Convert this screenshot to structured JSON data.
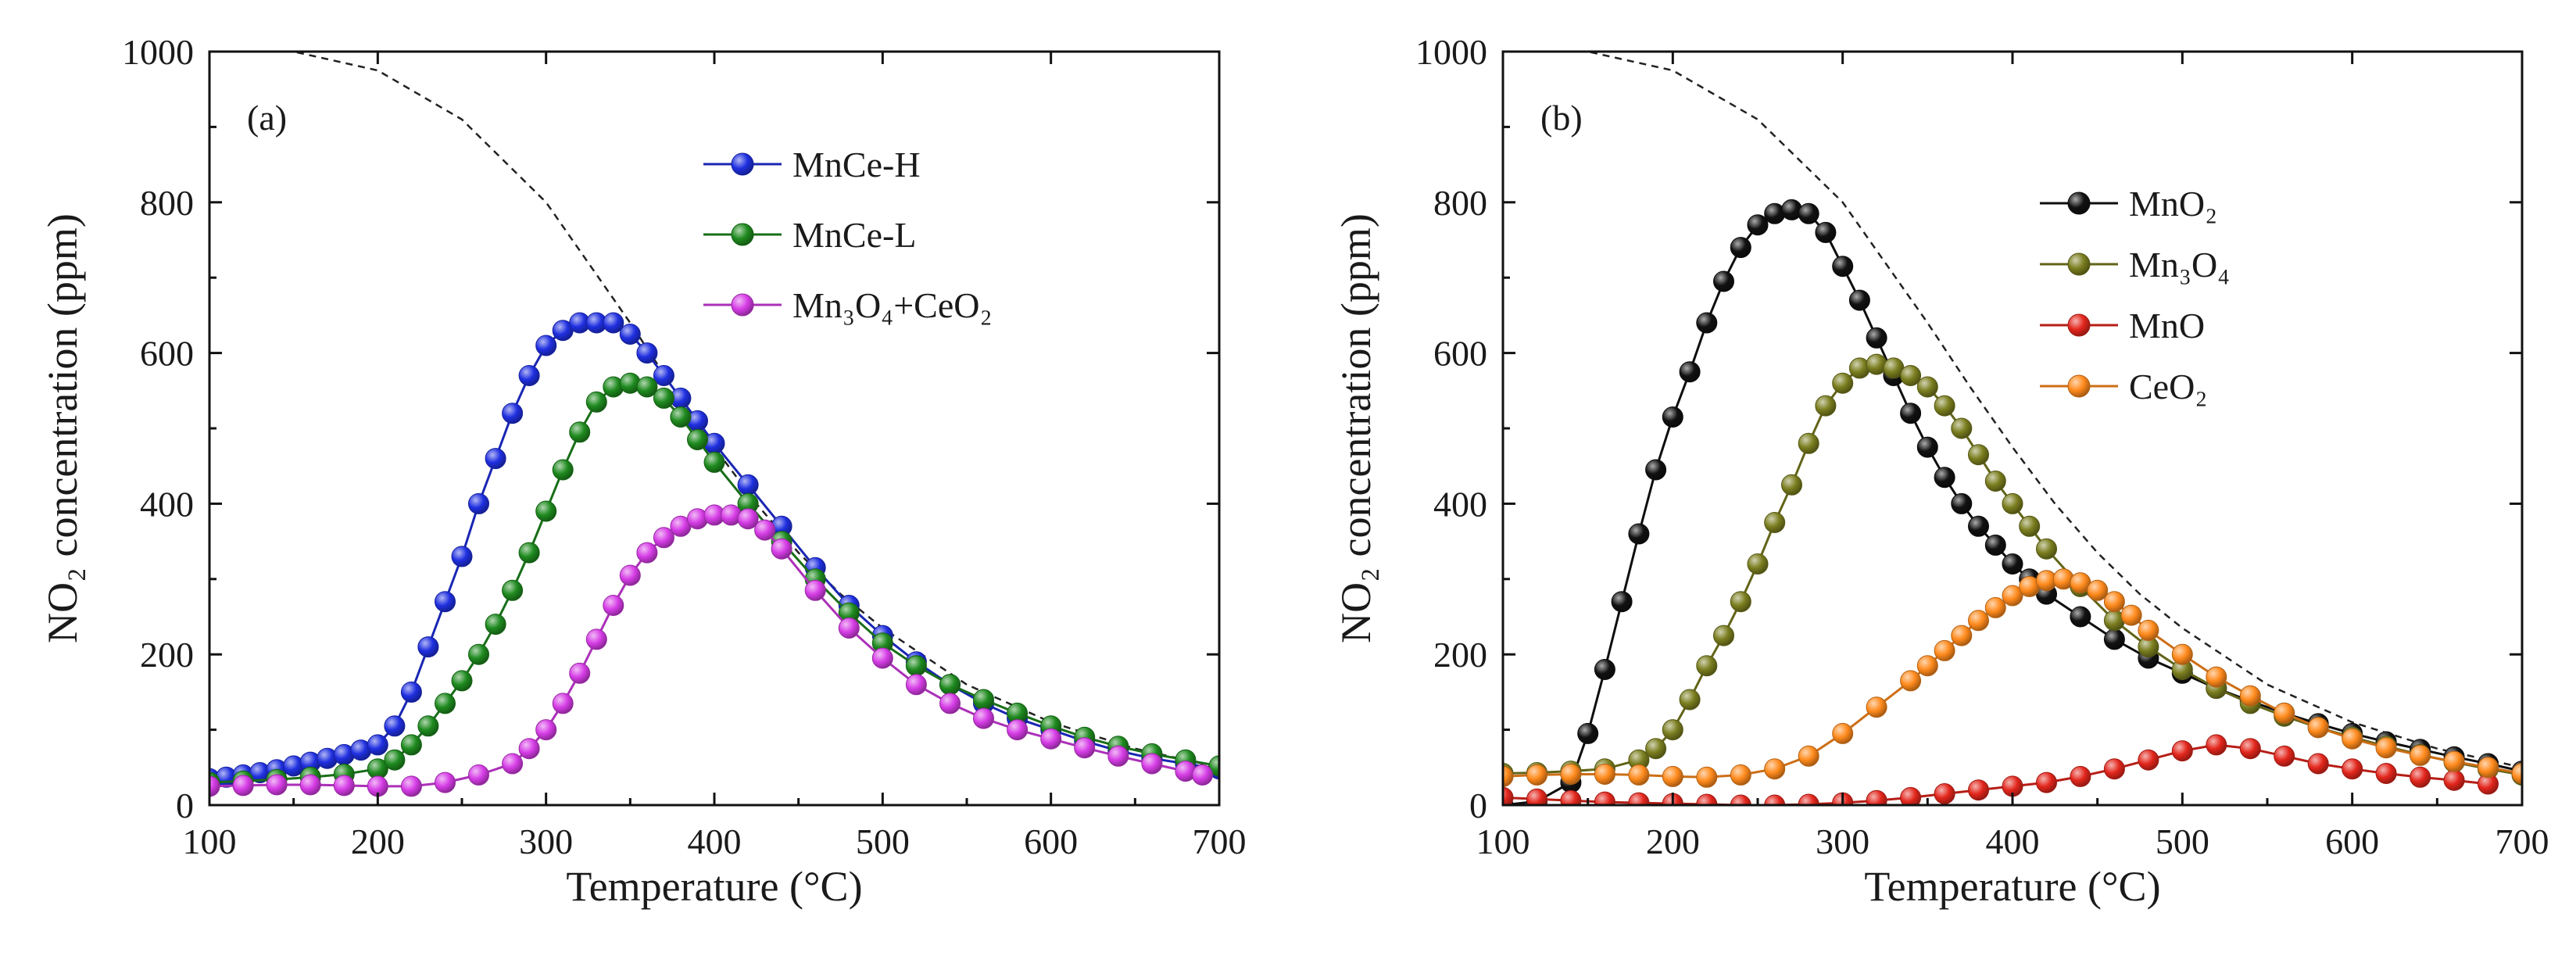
{
  "chart_data": [
    {
      "type": "line",
      "panel_label": "(a)",
      "xlabel": "Temperature (°C)",
      "ylabel": "NO₂ concentration (ppm)",
      "xlim": [
        100,
        700
      ],
      "ylim": [
        0,
        1000
      ],
      "xticks": [
        "100",
        "200",
        "300",
        "400",
        "500",
        "600",
        "700"
      ],
      "yticks": [
        "0",
        "200",
        "400",
        "600",
        "800",
        "1000"
      ],
      "grid": false,
      "legend_position": "top-right",
      "equilibrium_curve": {
        "style": "dashed",
        "x": [
          100,
          150,
          200,
          250,
          300,
          325,
          350,
          375,
          400,
          425,
          450,
          475,
          500,
          550,
          600,
          650,
          700
        ],
        "y": [
          1000,
          1000,
          975,
          910,
          800,
          720,
          640,
          555,
          475,
          400,
          335,
          280,
          235,
          160,
          110,
          75,
          50
        ]
      },
      "series": [
        {
          "name": "MnCe-H",
          "color": "#1f2fe0",
          "x": [
            100,
            110,
            120,
            130,
            140,
            150,
            160,
            170,
            180,
            190,
            200,
            210,
            220,
            230,
            240,
            250,
            260,
            270,
            280,
            290,
            300,
            310,
            320,
            330,
            340,
            350,
            360,
            370,
            380,
            390,
            400,
            420,
            440,
            460,
            480,
            500,
            520,
            540,
            560,
            580,
            600,
            620,
            640,
            660,
            680,
            700
          ],
          "y": [
            35,
            37,
            40,
            43,
            47,
            52,
            57,
            62,
            67,
            73,
            80,
            105,
            150,
            210,
            270,
            330,
            400,
            460,
            520,
            570,
            610,
            630,
            640,
            640,
            640,
            625,
            600,
            570,
            540,
            510,
            480,
            425,
            370,
            315,
            265,
            225,
            190,
            160,
            135,
            115,
            100,
            85,
            72,
            62,
            55,
            48
          ]
        },
        {
          "name": "MnCe-L",
          "color": "#1e8a1e",
          "x": [
            100,
            120,
            140,
            160,
            180,
            200,
            210,
            220,
            230,
            240,
            250,
            260,
            270,
            280,
            290,
            300,
            310,
            320,
            330,
            340,
            350,
            360,
            370,
            380,
            390,
            400,
            420,
            440,
            460,
            480,
            500,
            520,
            540,
            560,
            580,
            600,
            620,
            640,
            660,
            680,
            700
          ],
          "y": [
            30,
            32,
            34,
            37,
            41,
            48,
            60,
            80,
            105,
            135,
            165,
            200,
            240,
            285,
            335,
            390,
            445,
            495,
            535,
            555,
            560,
            555,
            540,
            515,
            485,
            455,
            400,
            350,
            300,
            255,
            215,
            185,
            160,
            140,
            122,
            105,
            90,
            78,
            68,
            60,
            52
          ]
        },
        {
          "name": "Mn₃O₄+CeO₂",
          "color": "#d63ce6",
          "x": [
            100,
            120,
            140,
            160,
            180,
            200,
            220,
            240,
            260,
            280,
            290,
            300,
            310,
            320,
            330,
            340,
            350,
            360,
            370,
            380,
            390,
            400,
            410,
            420,
            430,
            440,
            460,
            480,
            500,
            520,
            540,
            560,
            580,
            600,
            620,
            640,
            660,
            680,
            690
          ],
          "y": [
            25,
            26,
            27,
            27,
            26,
            25,
            25,
            30,
            40,
            55,
            75,
            100,
            135,
            175,
            220,
            265,
            305,
            335,
            355,
            370,
            380,
            385,
            385,
            380,
            365,
            340,
            285,
            235,
            195,
            160,
            135,
            115,
            100,
            88,
            76,
            65,
            55,
            45,
            40
          ]
        }
      ]
    },
    {
      "type": "line",
      "panel_label": "(b)",
      "xlabel": "Temperature (°C)",
      "ylabel": "NO₂ concentration (ppm)",
      "xlim": [
        100,
        700
      ],
      "ylim": [
        0,
        1000
      ],
      "xticks": [
        "100",
        "200",
        "300",
        "400",
        "500",
        "600",
        "700"
      ],
      "yticks": [
        "0",
        "200",
        "400",
        "600",
        "800",
        "1000"
      ],
      "grid": false,
      "legend_position": "top-right",
      "equilibrium_curve": {
        "style": "dashed",
        "x": [
          100,
          150,
          200,
          250,
          300,
          325,
          350,
          375,
          400,
          425,
          450,
          475,
          500,
          550,
          600,
          650,
          700
        ],
        "y": [
          1000,
          1000,
          975,
          910,
          800,
          720,
          640,
          555,
          475,
          400,
          335,
          280,
          235,
          160,
          110,
          75,
          50
        ]
      },
      "series": [
        {
          "name": "MnO₂",
          "color": "#111111",
          "x": [
            100,
            120,
            140,
            150,
            160,
            170,
            180,
            190,
            200,
            210,
            220,
            230,
            240,
            250,
            260,
            270,
            280,
            290,
            300,
            310,
            320,
            330,
            340,
            350,
            360,
            370,
            380,
            390,
            400,
            410,
            420,
            440,
            460,
            480,
            500,
            520,
            540,
            560,
            580,
            600,
            620,
            640,
            660,
            680,
            700
          ],
          "y": [
            0,
            5,
            30,
            95,
            180,
            270,
            360,
            445,
            515,
            575,
            640,
            695,
            740,
            770,
            785,
            790,
            785,
            760,
            715,
            670,
            620,
            570,
            520,
            475,
            435,
            400,
            370,
            345,
            320,
            300,
            280,
            250,
            220,
            195,
            175,
            155,
            138,
            122,
            108,
            95,
            84,
            74,
            64,
            55,
            45
          ]
        },
        {
          "name": "Mn₃O₄",
          "color": "#7a7d1e",
          "x": [
            100,
            120,
            140,
            160,
            180,
            190,
            200,
            210,
            220,
            230,
            240,
            250,
            260,
            270,
            280,
            290,
            300,
            310,
            320,
            330,
            340,
            350,
            360,
            370,
            380,
            390,
            400,
            410,
            420,
            440,
            460,
            480,
            500,
            520,
            540,
            560,
            580,
            600,
            620,
            640,
            660,
            680,
            700
          ],
          "y": [
            42,
            43,
            45,
            48,
            60,
            75,
            100,
            140,
            185,
            225,
            270,
            320,
            375,
            425,
            480,
            530,
            560,
            580,
            585,
            580,
            570,
            555,
            530,
            500,
            465,
            430,
            400,
            370,
            340,
            290,
            245,
            210,
            180,
            155,
            135,
            118,
            103,
            90,
            78,
            67,
            57,
            48,
            40
          ]
        },
        {
          "name": "MnO",
          "color": "#e3261c",
          "x": [
            100,
            120,
            140,
            160,
            180,
            200,
            220,
            240,
            260,
            280,
            300,
            320,
            340,
            360,
            380,
            400,
            420,
            440,
            460,
            480,
            500,
            520,
            540,
            560,
            580,
            600,
            620,
            640,
            660,
            680
          ],
          "y": [
            10,
            8,
            6,
            4,
            3,
            2,
            1,
            0,
            0,
            1,
            3,
            6,
            10,
            15,
            20,
            25,
            30,
            38,
            48,
            60,
            72,
            80,
            75,
            65,
            55,
            48,
            42,
            37,
            33,
            28
          ]
        },
        {
          "name": "CeO₂",
          "color": "#ff8a1c",
          "x": [
            100,
            120,
            140,
            160,
            180,
            200,
            220,
            240,
            260,
            280,
            300,
            320,
            340,
            350,
            360,
            370,
            380,
            390,
            400,
            410,
            420,
            430,
            440,
            450,
            460,
            470,
            480,
            500,
            520,
            540,
            560,
            580,
            600,
            620,
            640,
            660,
            680,
            700
          ],
          "y": [
            38,
            40,
            41,
            41,
            40,
            38,
            37,
            40,
            48,
            65,
            95,
            130,
            165,
            185,
            205,
            225,
            245,
            262,
            278,
            290,
            298,
            300,
            295,
            285,
            270,
            252,
            232,
            200,
            170,
            145,
            122,
            103,
            88,
            76,
            66,
            58,
            50,
            42
          ]
        }
      ]
    }
  ]
}
